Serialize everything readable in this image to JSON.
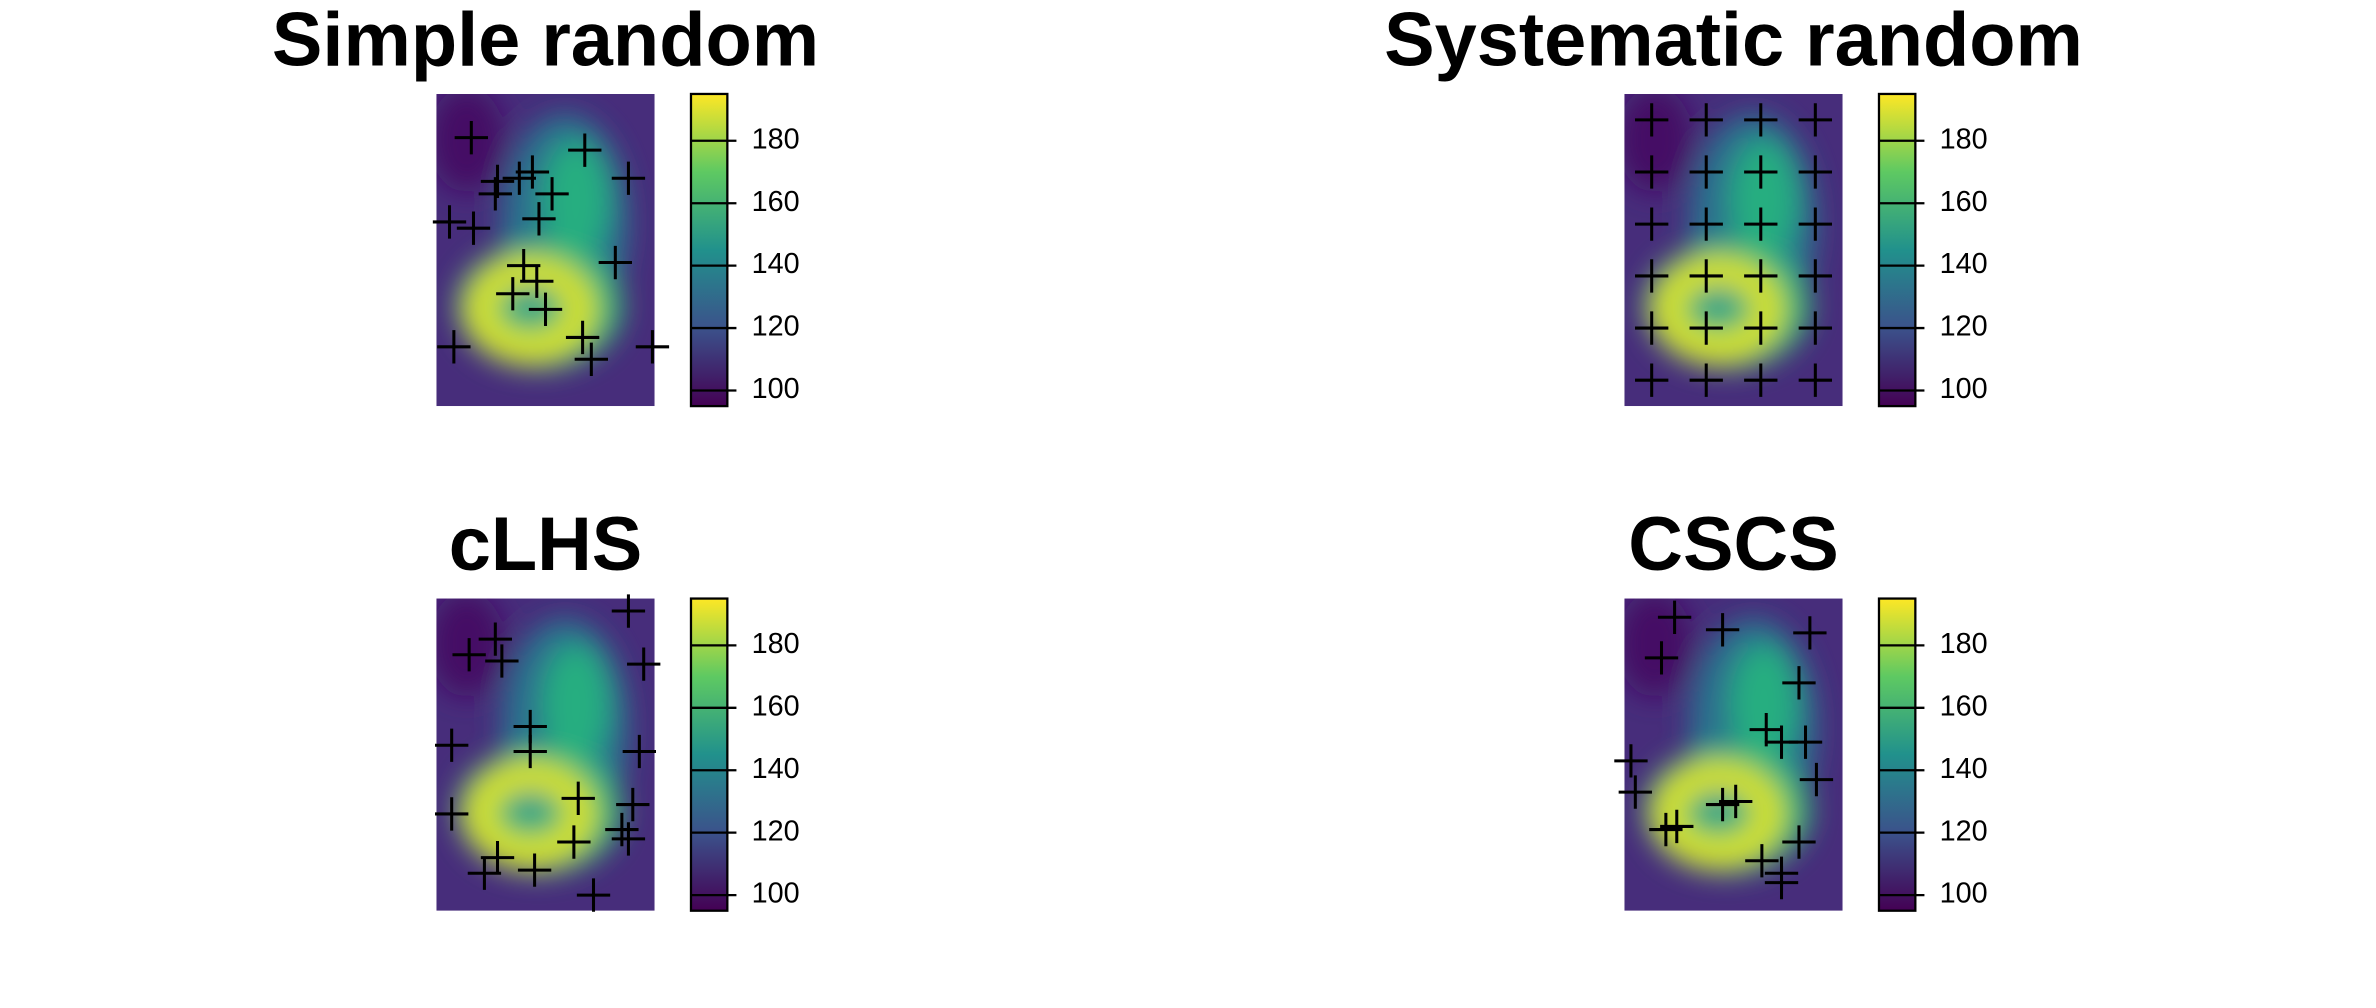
{
  "chart_data": [
    {
      "type": "scatter",
      "title": "Simple random",
      "xlim": [
        0,
        100
      ],
      "ylim": [
        0,
        100
      ],
      "x": [
        16,
        68,
        44,
        28,
        38,
        27,
        53,
        88,
        6,
        17,
        47,
        40,
        82,
        46,
        35,
        50,
        67,
        8,
        71,
        99
      ],
      "y": [
        86,
        82,
        75,
        72,
        73,
        68,
        68,
        73,
        59,
        57,
        60,
        45,
        46,
        40,
        36,
        31,
        22,
        19,
        15,
        19
      ],
      "clim": [
        95,
        195
      ],
      "cticks": [
        100,
        120,
        140,
        160,
        180
      ]
    },
    {
      "type": "scatter",
      "title": "Systematic random",
      "xlim": [
        0,
        100
      ],
      "ylim": [
        0,
        100
      ],
      "x": [
        12.5,
        37.5,
        62.5,
        87.5,
        12.5,
        37.5,
        62.5,
        87.5,
        12.5,
        37.5,
        62.5,
        87.5,
        12.5,
        37.5,
        62.5,
        87.5,
        12.5,
        37.5,
        62.5,
        87.5,
        12.5,
        37.5,
        62.5,
        87.5
      ],
      "y": [
        91.7,
        91.7,
        91.7,
        91.7,
        75,
        75,
        75,
        75,
        58.3,
        58.3,
        58.3,
        58.3,
        41.7,
        41.7,
        41.7,
        41.7,
        25,
        25,
        25,
        25,
        8.3,
        8.3,
        8.3,
        8.3
      ],
      "clim": [
        95,
        195
      ],
      "cticks": [
        100,
        120,
        140,
        160,
        180
      ]
    },
    {
      "type": "scatter",
      "title": "cLHS",
      "xlim": [
        0,
        100
      ],
      "ylim": [
        0,
        100
      ],
      "x": [
        27,
        15,
        30,
        88,
        95,
        43,
        7,
        43,
        93,
        65,
        90,
        7,
        85,
        88,
        63,
        28,
        22,
        45,
        72
      ],
      "y": [
        87,
        82,
        80,
        96,
        79,
        59,
        53,
        51,
        51,
        36,
        34,
        31,
        26,
        23,
        22,
        17,
        12,
        13,
        5
      ],
      "clim": [
        95,
        195
      ],
      "cticks": [
        100,
        120,
        140,
        160,
        180
      ]
    },
    {
      "type": "scatter",
      "title": "CSCS",
      "xlim": [
        0,
        100
      ],
      "ylim": [
        0,
        100
      ],
      "x": [
        23,
        45,
        85,
        17,
        80,
        65,
        72,
        83,
        88,
        3,
        5,
        45,
        51,
        19,
        24,
        80,
        63,
        72,
        72
      ],
      "y": [
        94,
        90,
        89,
        81,
        73,
        58,
        54,
        54,
        42,
        48,
        38,
        34,
        35,
        26,
        27,
        22,
        16,
        12,
        9
      ],
      "clim": [
        95,
        195
      ],
      "cticks": [
        100,
        120,
        140,
        160,
        180
      ]
    }
  ]
}
